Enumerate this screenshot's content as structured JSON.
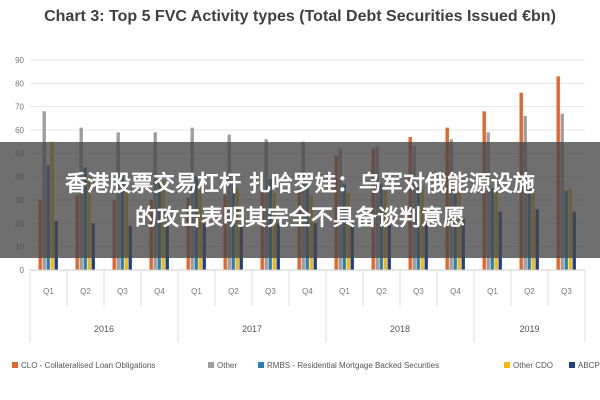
{
  "chart_data": {
    "type": "bar",
    "title": "Chart 3: Top 5 FVC Activity types (Total Debt Securities Issued €bn)",
    "categories": [
      "Q1",
      "Q2",
      "Q3",
      "Q4",
      "Q1",
      "Q2",
      "Q3",
      "Q4",
      "Q1",
      "Q2",
      "Q3",
      "Q4",
      "Q1",
      "Q2",
      "Q3"
    ],
    "groups": [
      {
        "label": "2016",
        "start": 0,
        "count": 4
      },
      {
        "label": "2017",
        "start": 4,
        "count": 4
      },
      {
        "label": "2018",
        "start": 8,
        "count": 4
      },
      {
        "label": "2019",
        "start": 12,
        "count": 3
      }
    ],
    "yticks": [
      0,
      10,
      20,
      30,
      40,
      50,
      60,
      70,
      80,
      90
    ],
    "ylim": [
      0,
      90
    ],
    "series": [
      {
        "name": "CLO - Collateralised Loan Obligations",
        "color": "#e2672b",
        "values": [
          30,
          32,
          30,
          30,
          31,
          32,
          34,
          35,
          49,
          52,
          57,
          61,
          68,
          76,
          83
        ]
      },
      {
        "name": "Other",
        "color": "#9e9e9e",
        "values": [
          68,
          61,
          59,
          59,
          61,
          58,
          56,
          55,
          52,
          53,
          53,
          56,
          59,
          66,
          67
        ]
      },
      {
        "name": "RMBS - Residential Mortgage Backed Securities",
        "color": "#2c7fb0",
        "values": [
          45,
          44,
          40,
          39,
          40,
          39,
          39,
          38,
          37,
          37,
          36,
          36,
          35,
          35,
          34
        ]
      },
      {
        "name": "Other CDO",
        "color": "#f2b811",
        "values": [
          55,
          40,
          37,
          38,
          37,
          35,
          33,
          32,
          33,
          34,
          35,
          35,
          35,
          35,
          35
        ]
      },
      {
        "name": "ABCP",
        "color": "#1f3f8c",
        "values": [
          21,
          20,
          19,
          19,
          20,
          20,
          20,
          20,
          20,
          21,
          22,
          22,
          25,
          26,
          25
        ]
      }
    ],
    "legend_position": "bottom",
    "grid": true
  },
  "overlay": {
    "line1": "香港股票交易杠杆 扎哈罗娃：乌军对俄能源设施",
    "line2": "的攻击表明其完全不具备谈判意愿"
  }
}
